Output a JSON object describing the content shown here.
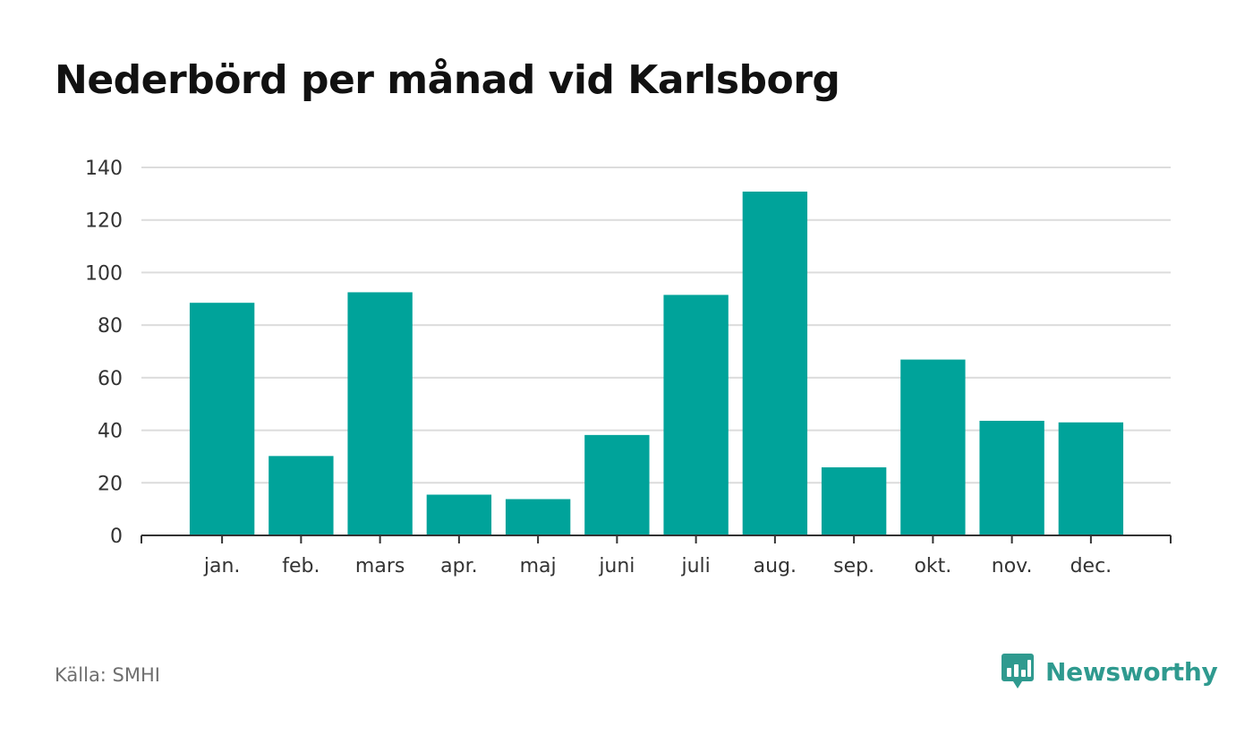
{
  "chart_data": {
    "type": "bar",
    "title": "Nederbörd per månad vid Karlsborg",
    "xlabel": "",
    "ylabel": "",
    "categories": [
      "jan.",
      "feb.",
      "mars",
      "apr.",
      "maj",
      "juni",
      "juli",
      "aug.",
      "sep.",
      "okt.",
      "nov.",
      "dec."
    ],
    "values": [
      88.5,
      30.2,
      92.5,
      15.5,
      13.8,
      38.2,
      91.5,
      130.8,
      25.9,
      66.9,
      43.6,
      43.0
    ],
    "ylim": [
      0,
      140
    ],
    "yticks": [
      0,
      20,
      40,
      60,
      80,
      100,
      120,
      140
    ],
    "grid": true,
    "bar_color": "#00a39a"
  },
  "footer": {
    "source": "Källa: SMHI",
    "brand": "Newsworthy",
    "brand_color": "#2f9a8f"
  }
}
